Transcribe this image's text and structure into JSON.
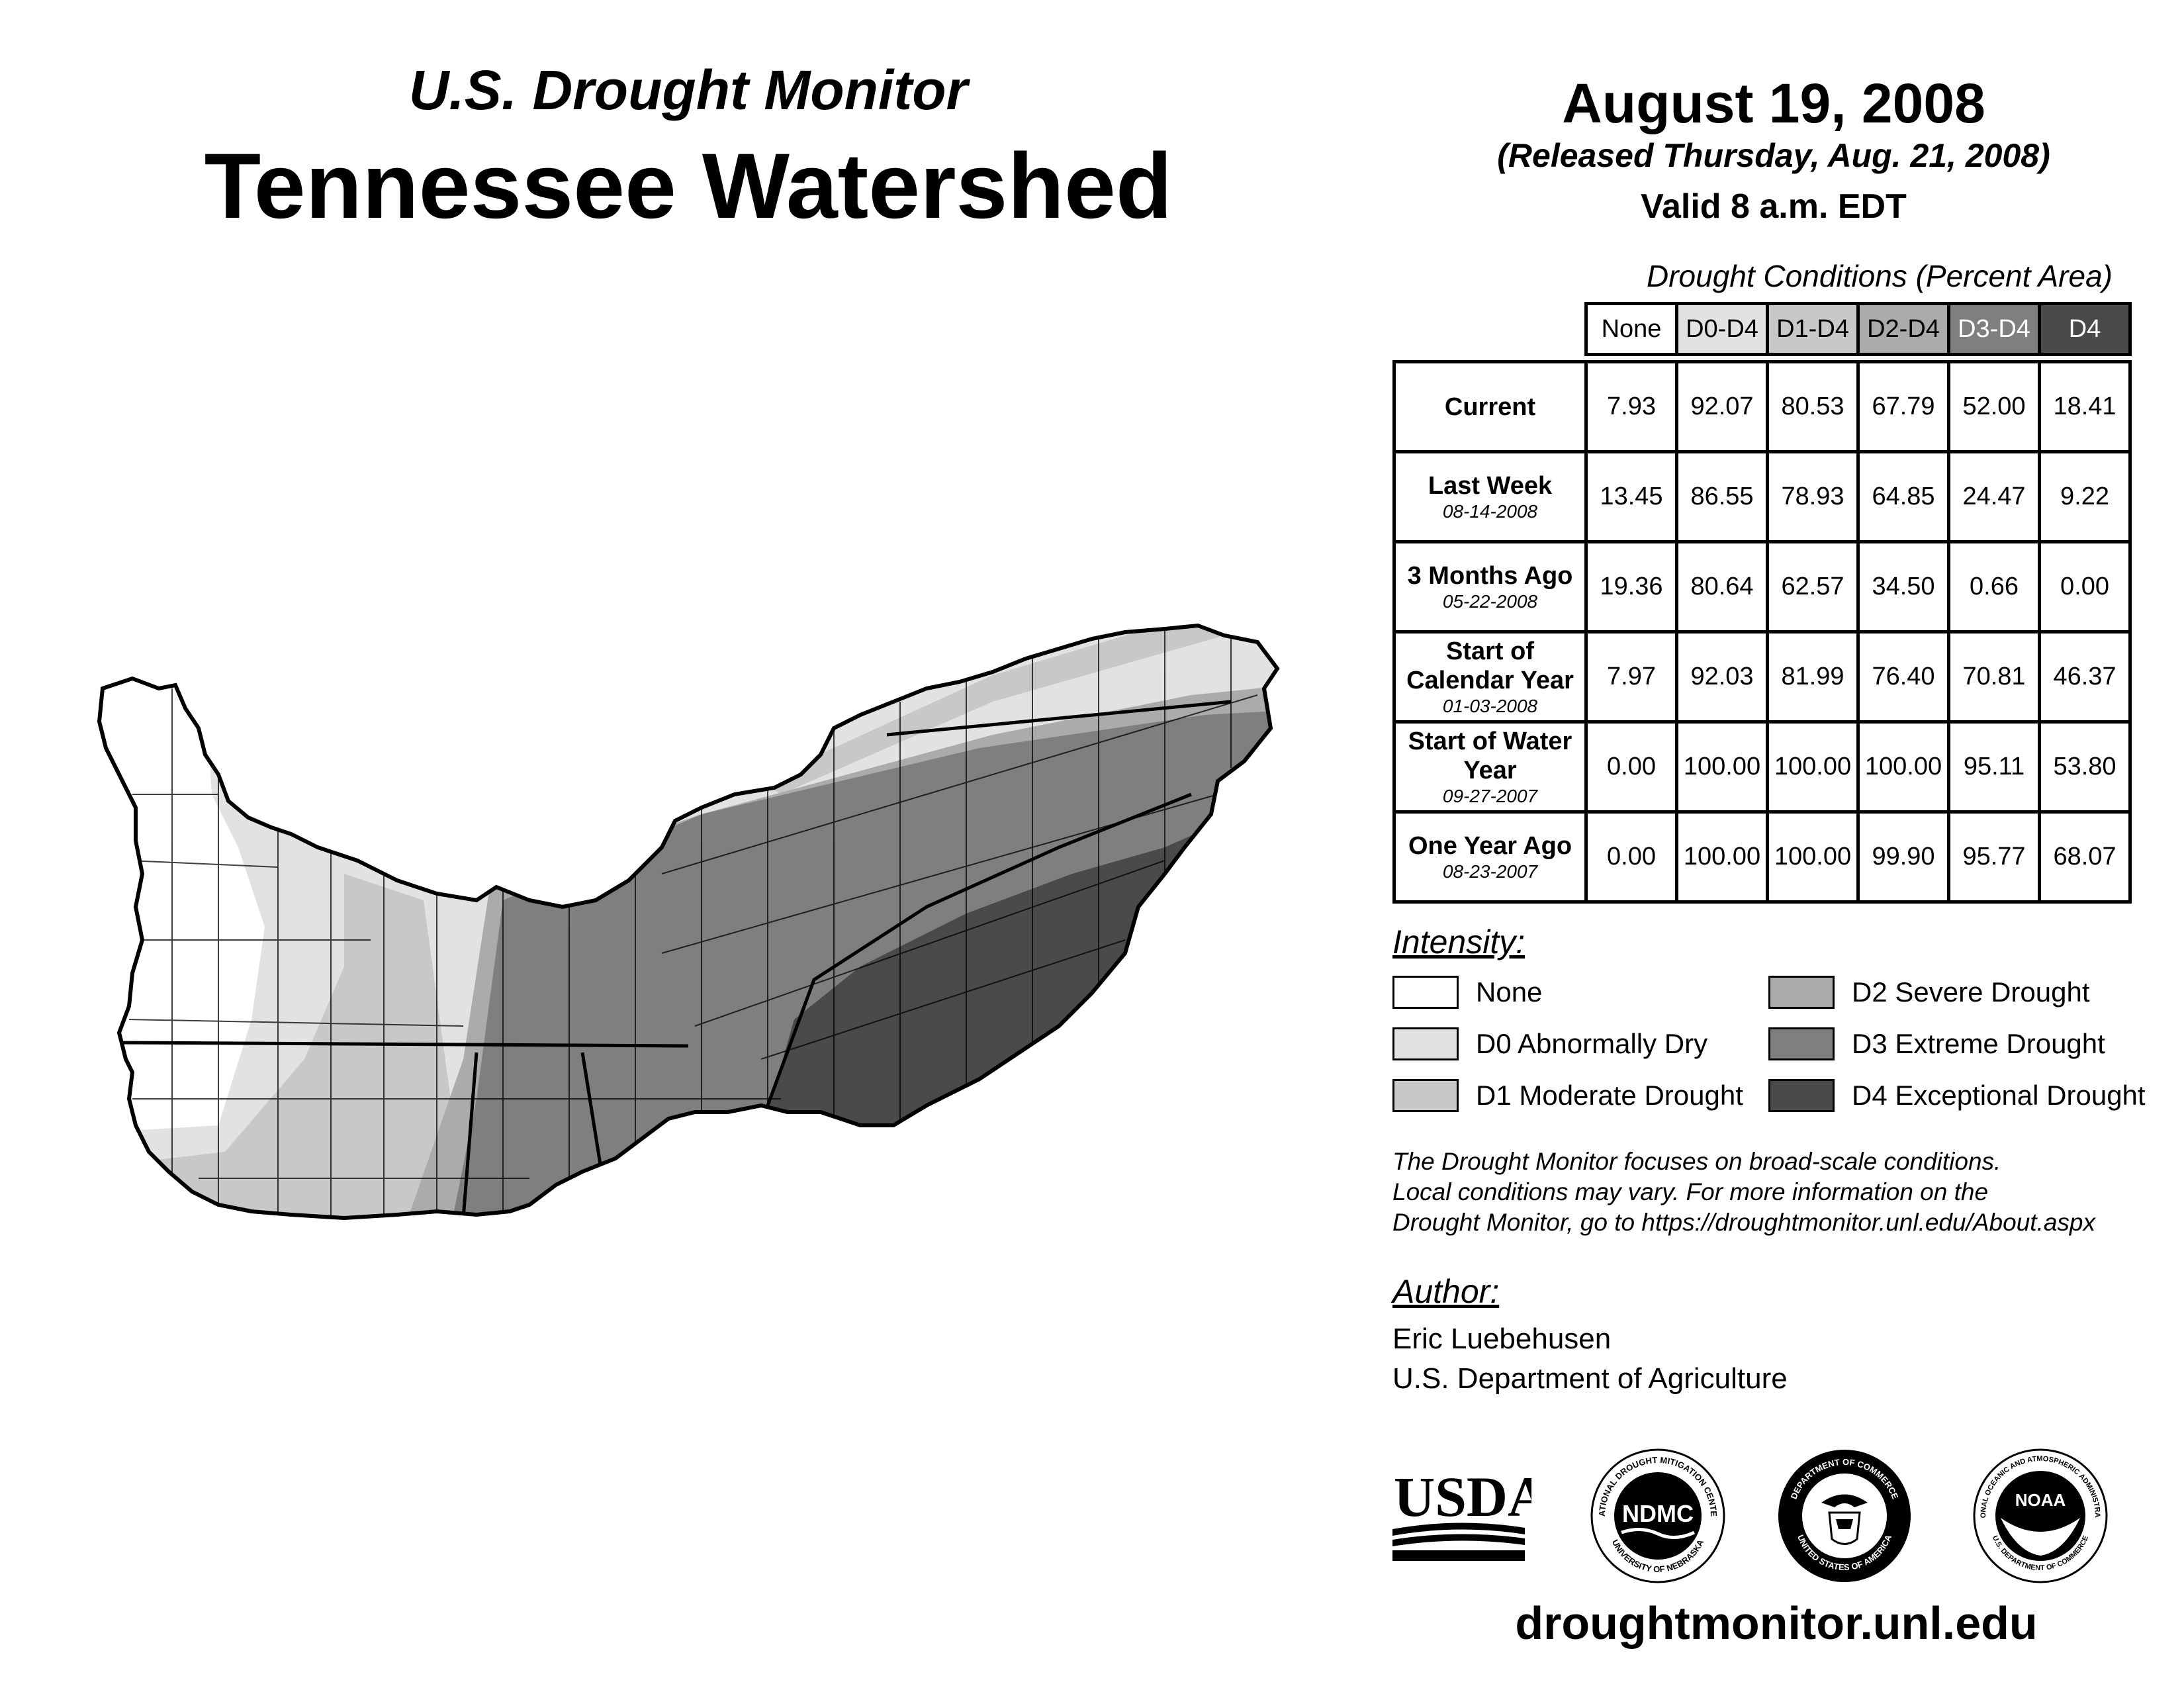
{
  "header": {
    "subtitle": "U.S. Drought Monitor",
    "title": "Tennessee Watershed",
    "date": "August 19, 2008",
    "released": "(Released Thursday, Aug. 21, 2008)",
    "valid": "Valid 8 a.m. EDT"
  },
  "table": {
    "caption": "Drought Conditions (Percent Area)",
    "columns": [
      "None",
      "D0-D4",
      "D1-D4",
      "D2-D4",
      "D3-D4",
      "D4"
    ],
    "rows": [
      {
        "label": "Current",
        "date": "",
        "values": [
          "7.93",
          "92.07",
          "80.53",
          "67.79",
          "52.00",
          "18.41"
        ]
      },
      {
        "label": "Last Week",
        "date": "08-14-2008",
        "values": [
          "13.45",
          "86.55",
          "78.93",
          "64.85",
          "24.47",
          "9.22"
        ]
      },
      {
        "label": "3 Months Ago",
        "date": "05-22-2008",
        "values": [
          "19.36",
          "80.64",
          "62.57",
          "34.50",
          "0.66",
          "0.00"
        ]
      },
      {
        "label": "Start of Calendar Year",
        "date": "01-03-2008",
        "values": [
          "7.97",
          "92.03",
          "81.99",
          "76.40",
          "70.81",
          "46.37"
        ]
      },
      {
        "label": "Start of Water Year",
        "date": "09-27-2007",
        "values": [
          "0.00",
          "100.00",
          "100.00",
          "100.00",
          "95.11",
          "53.80"
        ]
      },
      {
        "label": "One Year Ago",
        "date": "08-23-2007",
        "values": [
          "0.00",
          "100.00",
          "100.00",
          "99.90",
          "95.77",
          "68.07"
        ]
      }
    ]
  },
  "legend": {
    "title": "Intensity:",
    "items": [
      {
        "label": "None",
        "color": "#ffffff"
      },
      {
        "label": "D0 Abnormally Dry",
        "color": "#e2e2e2"
      },
      {
        "label": "D1 Moderate Drought",
        "color": "#c8c8c8"
      },
      {
        "label": "D2 Severe Drought",
        "color": "#ababab"
      },
      {
        "label": "D3 Extreme Drought",
        "color": "#7f7f7f"
      },
      {
        "label": "D4 Exceptional Drought",
        "color": "#4a4a4a"
      }
    ]
  },
  "note": {
    "line1": "The Drought Monitor focuses on broad-scale conditions.",
    "line2": "Local conditions may vary. For more information on the",
    "line3": "Drought Monitor, go to https://droughtmonitor.unl.edu/About.aspx"
  },
  "author": {
    "title": "Author:",
    "name": "Eric Luebehusen",
    "org": "U.S. Department of Agriculture"
  },
  "logos": {
    "usda": "USDA",
    "ndmc": "NDMC",
    "ndmc_ring_top": "NATIONAL DROUGHT MITIGATION CENTER",
    "ndmc_ring_bottom": "UNIVERSITY OF NEBRASKA",
    "doc_ring_top": "DEPARTMENT OF COMMERCE",
    "doc_ring_bottom": "UNITED STATES OF AMERICA",
    "noaa": "NOAA",
    "noaa_ring_top": "NATIONAL OCEANIC AND ATMOSPHERIC ADMINISTRATION",
    "noaa_ring_bottom": "U.S. DEPARTMENT OF COMMERCE"
  },
  "footer": {
    "url": "droughtmonitor.unl.edu"
  },
  "colors": {
    "table_header": [
      "#ffffff",
      "#e2e2e2",
      "#c8c8c8",
      "#ababab",
      "#7f7f7f",
      "#4a4a4a"
    ],
    "table_header_text": [
      "#000000",
      "#000000",
      "#000000",
      "#000000",
      "#ffffff",
      "#ffffff"
    ]
  }
}
